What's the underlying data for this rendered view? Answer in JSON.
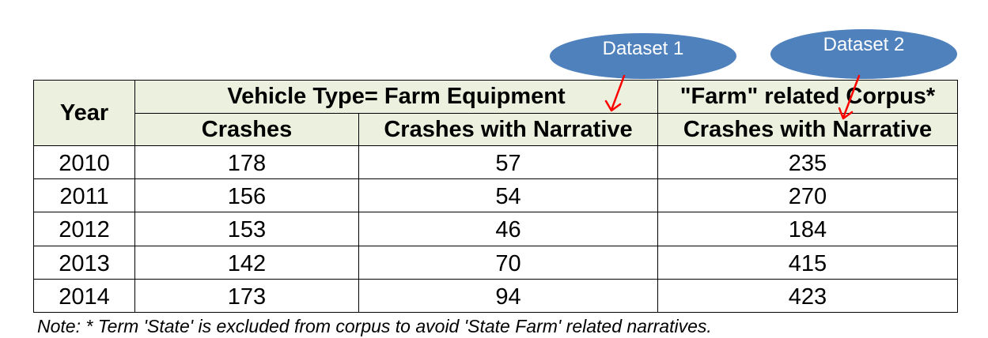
{
  "callouts": [
    {
      "label": "Dataset 1"
    },
    {
      "label": "Dataset 2"
    }
  ],
  "table": {
    "year_header": "Year",
    "group_headers": [
      "Vehicle Type= Farm Equipment",
      "\"Farm\" related Corpus*"
    ],
    "sub_headers": [
      "Crashes",
      "Crashes with Narrative",
      "Crashes with Narrative"
    ],
    "rows": [
      {
        "year": "2010",
        "crashes": "178",
        "narrative": "57",
        "corpus_narrative": "235"
      },
      {
        "year": "2011",
        "crashes": "156",
        "narrative": "54",
        "corpus_narrative": "270"
      },
      {
        "year": "2012",
        "crashes": "153",
        "narrative": "46",
        "corpus_narrative": "184"
      },
      {
        "year": "2013",
        "crashes": "142",
        "narrative": "70",
        "corpus_narrative": "415"
      },
      {
        "year": "2014",
        "crashes": "173",
        "narrative": "94",
        "corpus_narrative": "423"
      }
    ]
  },
  "note": "Note: * Term 'State' is excluded from corpus to avoid 'State Farm' related narratives.",
  "colors": {
    "callout_fill": "#4f81bd",
    "header_fill": "#ebf1de",
    "arrow": "#ff0000"
  }
}
